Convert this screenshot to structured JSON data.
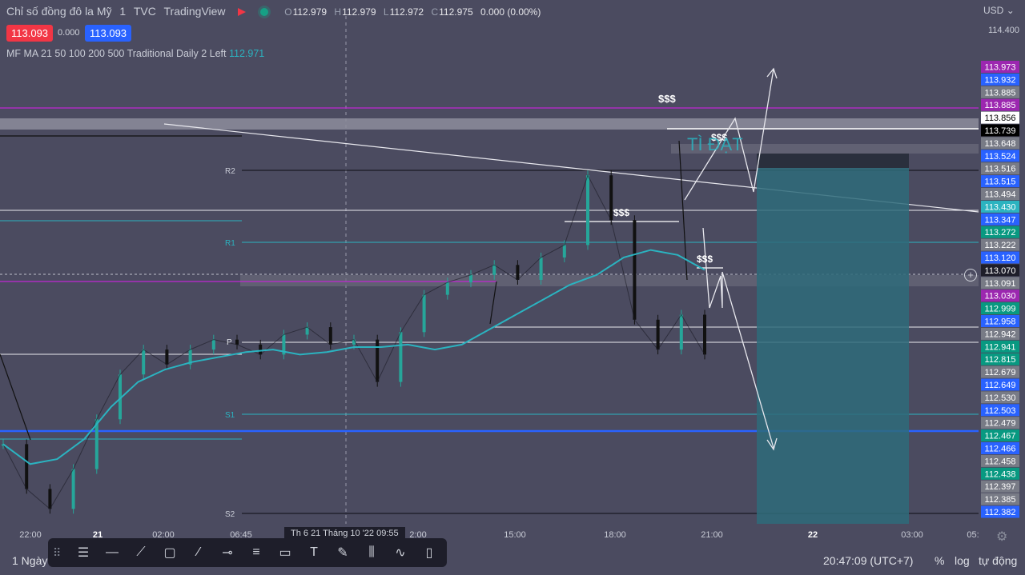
{
  "header": {
    "title": "Chỉ số đồng đô la Mỹ",
    "interval": "1",
    "exchange": "TVC",
    "source": "TradingView",
    "ohlc": {
      "o_label": "O",
      "o": "112.979",
      "h_label": "H",
      "h": "112.979",
      "l_label": "L",
      "l": "112.972",
      "c_label": "C",
      "c": "112.975",
      "change": "0.000 (0.00%)"
    },
    "bid": "113.093",
    "spread": "0.000",
    "ask": "113.093"
  },
  "indicator": {
    "label": "MF MA 21 50 100 200 500 Traditional Daily 2 Left",
    "value": "112.971"
  },
  "currency": "USD",
  "pivots": {
    "r2": "R2",
    "r1": "R1",
    "p": "P",
    "s1": "S1",
    "s2": "S2"
  },
  "annotations": {
    "sss1": "$$$",
    "sss2": "$$$",
    "sss3": "$$$",
    "sss4": "$$$",
    "watermark": "TÌ ĐẠT"
  },
  "colors": {
    "background": "#4b4b60",
    "candle_up": "#26a69a",
    "candle_down": "#111111",
    "ma": "#2bb3c0",
    "magenta": "#c026d3",
    "blue_line": "#2962ff",
    "white_line": "#ffffff",
    "teal_zone": "#2e6b7a",
    "dark_zone": "#2a2f3d"
  },
  "chart_data": {
    "type": "line",
    "symbol": "TVC:DXY",
    "x_ticks": [
      "22:00",
      "21",
      "02:00",
      "06:45",
      "2:00",
      "15:00",
      "18:00",
      "21:00",
      "22",
      "03:00",
      "05:"
    ],
    "crosshair_time": "Th 6 21 Tháng 10 '22   09:55",
    "ylim": [
      112.38,
      114.42
    ],
    "y_axis_tick": "114.400",
    "series": [
      {
        "name": "Price",
        "values": [
          112.7,
          112.52,
          112.44,
          112.6,
          112.8,
          112.98,
          113.08,
          113.02,
          113.08,
          113.12,
          113.1,
          113.06,
          113.14,
          113.17,
          113.1,
          113.12,
          112.95,
          113.15,
          113.3,
          113.35,
          113.38,
          113.42,
          113.36,
          113.45,
          113.5,
          113.78,
          113.6,
          113.2,
          113.08,
          113.22,
          113.06
        ]
      },
      {
        "name": "MA",
        "values": [
          112.7,
          112.62,
          112.64,
          112.72,
          112.85,
          112.95,
          113.0,
          113.03,
          113.05,
          113.07,
          113.08,
          113.06,
          113.07,
          113.09,
          113.09,
          113.1,
          113.08,
          113.1,
          113.16,
          113.22,
          113.28,
          113.34,
          113.38,
          113.45,
          113.48,
          113.46,
          113.4
        ]
      }
    ],
    "price_levels": [
      {
        "value": "113.973",
        "color": "#9c27b0"
      },
      {
        "value": "113.932",
        "color": "#2962ff"
      },
      {
        "value": "113.885",
        "color": "#787b86"
      },
      {
        "value": "113.885",
        "color": "#9c27b0"
      },
      {
        "value": "113.856",
        "color": "#ffffff",
        "text": "#000000"
      },
      {
        "value": "113.739",
        "color": "#000000"
      },
      {
        "value": "113.648",
        "color": "#787b86"
      },
      {
        "value": "113.524",
        "color": "#2962ff"
      },
      {
        "value": "113.516",
        "color": "#787b86"
      },
      {
        "value": "113.515",
        "color": "#2962ff"
      },
      {
        "value": "113.494",
        "color": "#787b86"
      },
      {
        "value": "113.430",
        "color": "#2bb3c0"
      },
      {
        "value": "113.347",
        "color": "#2962ff"
      },
      {
        "value": "113.272",
        "color": "#089981"
      },
      {
        "value": "113.222",
        "color": "#787b86"
      },
      {
        "value": "113.120",
        "color": "#2962ff"
      },
      {
        "value": "113.070",
        "color": "#1e1e2a"
      },
      {
        "value": "113.091",
        "color": "#787b86"
      },
      {
        "value": "113.030",
        "color": "#9c27b0"
      },
      {
        "value": "112.999",
        "color": "#089981"
      },
      {
        "value": "112.958",
        "color": "#2962ff"
      },
      {
        "value": "112.942",
        "color": "#787b86"
      },
      {
        "value": "112.941",
        "color": "#089981"
      },
      {
        "value": "112.815",
        "color": "#089981"
      },
      {
        "value": "112.679",
        "color": "#787b86"
      },
      {
        "value": "112.649",
        "color": "#2962ff"
      },
      {
        "value": "112.530",
        "color": "#787b86"
      },
      {
        "value": "112.503",
        "color": "#2962ff"
      },
      {
        "value": "112.479",
        "color": "#787b86"
      },
      {
        "value": "112.467",
        "color": "#089981"
      },
      {
        "value": "112.466",
        "color": "#2962ff"
      },
      {
        "value": "112.458",
        "color": "#787b86"
      },
      {
        "value": "112.438",
        "color": "#089981"
      },
      {
        "value": "112.397",
        "color": "#787b86"
      },
      {
        "value": "112.385",
        "color": "#787b86"
      },
      {
        "value": "112.382",
        "color": "#2962ff"
      }
    ]
  },
  "toolbar": {
    "icons": [
      "grip-icon",
      "multi-line-icon",
      "horizontal-line-icon",
      "path-icon",
      "rectangle-icon",
      "trendline-icon",
      "horizontal-ray-icon",
      "parallel-channel-icon",
      "callout-icon",
      "text-icon",
      "brush-icon",
      "long-short-icon",
      "curve-icon",
      "comment-icon"
    ]
  },
  "footer": {
    "timeframe": "1 Ngày",
    "clock": "20:47:09 (UTC+7)",
    "percent": "%",
    "log": "log",
    "auto": "tự động"
  }
}
